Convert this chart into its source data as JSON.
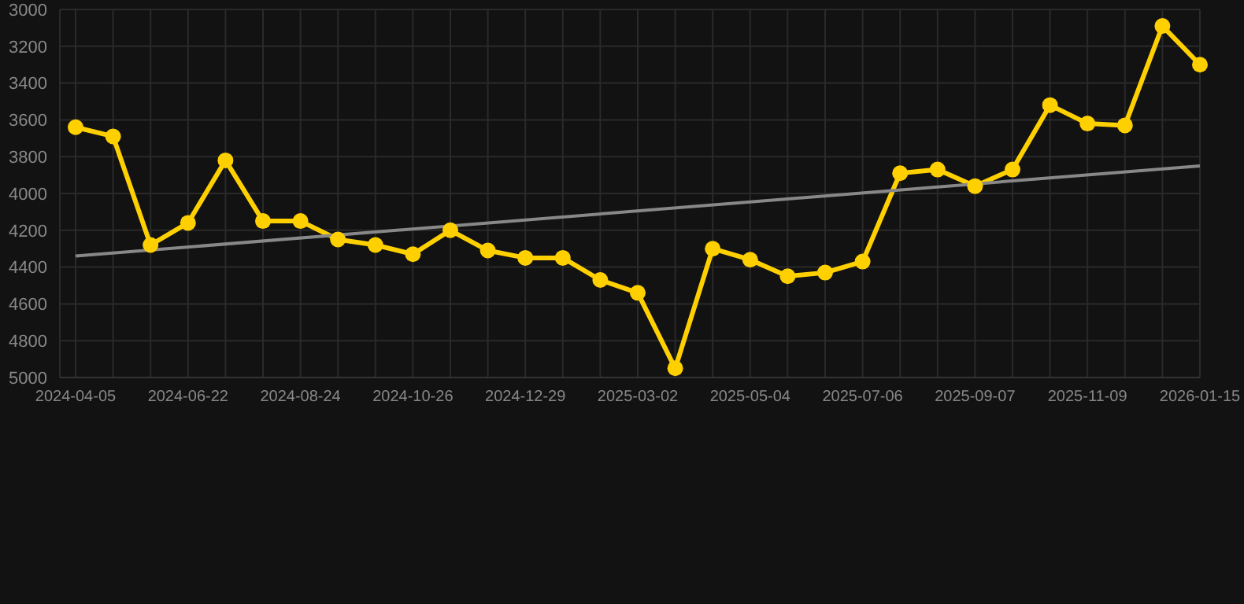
{
  "chart_data": {
    "type": "line",
    "categories": [
      "2024-04-05",
      null,
      null,
      "2024-06-22",
      null,
      null,
      "2024-08-24",
      null,
      null,
      "2024-10-26",
      null,
      null,
      "2024-12-29",
      null,
      null,
      "2025-03-02",
      null,
      null,
      "2025-05-04",
      null,
      null,
      "2025-07-06",
      null,
      null,
      "2025-09-07",
      null,
      null,
      "2025-11-09",
      null,
      null,
      "2026-01-15"
    ],
    "series": [
      {
        "color": "#ffd000",
        "marker": "circle",
        "values": [
          3640,
          3690,
          4280,
          4160,
          3820,
          4150,
          4150,
          4250,
          4280,
          4330,
          4200,
          4310,
          4350,
          4350,
          4470,
          4540,
          4950,
          4300,
          4360,
          4450,
          4430,
          4370,
          3890,
          3870,
          3960,
          3870,
          3520,
          3620,
          3630,
          3090,
          3300
        ]
      },
      {
        "color": "#888888",
        "marker": "none",
        "values": [
          4340,
          null,
          null,
          null,
          null,
          null,
          null,
          null,
          null,
          null,
          null,
          null,
          null,
          null,
          null,
          null,
          null,
          null,
          null,
          null,
          null,
          null,
          null,
          null,
          null,
          null,
          null,
          null,
          null,
          null,
          3850
        ]
      }
    ],
    "ylim": [
      5000,
      3000
    ],
    "yticks": [
      3000,
      3200,
      3400,
      3600,
      3800,
      4000,
      4200,
      4400,
      4600,
      4800,
      5000
    ],
    "grid": true
  }
}
